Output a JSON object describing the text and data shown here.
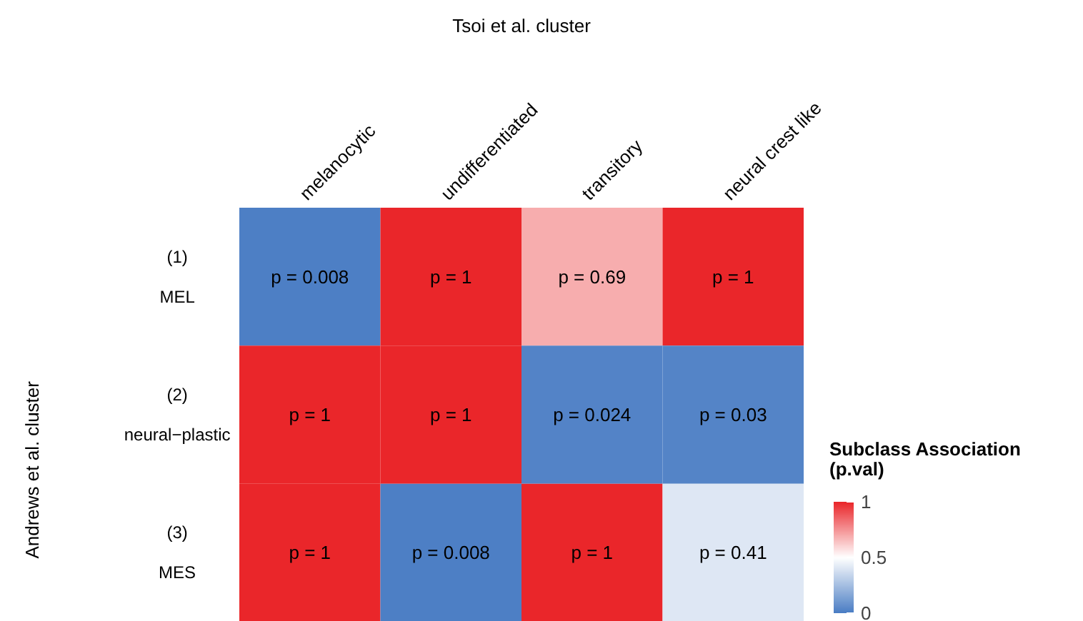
{
  "chart_data": {
    "type": "heatmap",
    "xlabel": "Tsoi et al. cluster",
    "ylabel": "Andrews et al. cluster",
    "legend_title": "Subclass Association\n(p.val)",
    "categories": [
      "melanocytic",
      "undifferentiated",
      "transitory",
      "neural crest like"
    ],
    "y_categories": [
      "(1)\nMEL",
      "(2)\nneural−plastic",
      "(3)\nMES"
    ],
    "cells": [
      [
        0.008,
        1,
        0.69,
        1
      ],
      [
        1,
        1,
        0.024,
        0.03
      ],
      [
        1,
        0.008,
        1,
        0.41
      ]
    ],
    "cell_labels": [
      [
        "p = 0.008",
        "p = 1",
        "p = 0.69",
        "p = 1"
      ],
      [
        "p = 1",
        "p = 1",
        "p = 0.024",
        "p = 0.03"
      ],
      [
        "p = 1",
        "p = 0.008",
        "p = 1",
        "p = 0.41"
      ]
    ],
    "clim": [
      0,
      1
    ],
    "cticks": [
      0,
      0.5,
      1
    ]
  }
}
